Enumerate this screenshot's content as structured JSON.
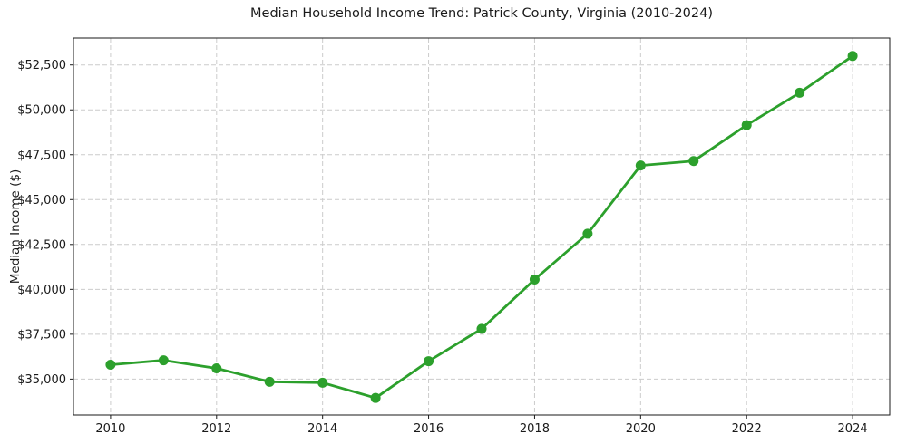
{
  "chart_data": {
    "type": "line",
    "title": "Median Household Income Trend: Patrick County, Virginia (2010-2024)",
    "xlabel": "",
    "ylabel": "Median Income ($)",
    "line_color": "#2ca02c",
    "marker": "circle",
    "grid": true,
    "legend": "none",
    "xlim": [
      2009.3,
      2024.7
    ],
    "ylim": [
      33000,
      54000
    ],
    "x": [
      2010,
      2011,
      2012,
      2013,
      2014,
      2015,
      2016,
      2017,
      2018,
      2019,
      2020,
      2021,
      2022,
      2023,
      2024
    ],
    "values": [
      35800,
      36050,
      35600,
      34850,
      34800,
      33950,
      36000,
      37800,
      40550,
      43100,
      46900,
      47150,
      49150,
      50950,
      53000
    ],
    "x_ticks": [
      {
        "value": 2010,
        "label": "2010"
      },
      {
        "value": 2012,
        "label": "2012"
      },
      {
        "value": 2014,
        "label": "2014"
      },
      {
        "value": 2016,
        "label": "2016"
      },
      {
        "value": 2018,
        "label": "2018"
      },
      {
        "value": 2020,
        "label": "2020"
      },
      {
        "value": 2022,
        "label": "2022"
      },
      {
        "value": 2024,
        "label": "2024"
      }
    ],
    "y_ticks": [
      {
        "value": 35000,
        "label": "$35,000"
      },
      {
        "value": 37500,
        "label": "$37,500"
      },
      {
        "value": 40000,
        "label": "$40,000"
      },
      {
        "value": 42500,
        "label": "$42,500"
      },
      {
        "value": 45000,
        "label": "$45,000"
      },
      {
        "value": 47500,
        "label": "$47,500"
      },
      {
        "value": 50000,
        "label": "$50,000"
      },
      {
        "value": 52500,
        "label": "$52,500"
      }
    ]
  }
}
